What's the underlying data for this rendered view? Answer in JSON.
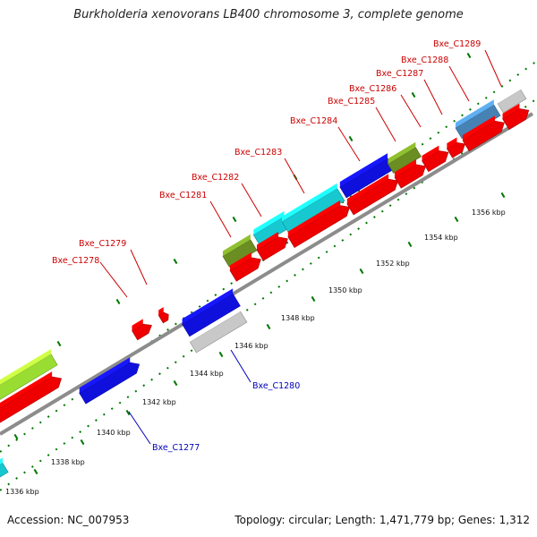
{
  "title": "Burkholderia xenovorans LB400 chromosome 3, complete genome",
  "footer": {
    "accession": "Accession: NC_007953",
    "summary": "Topology: circular; Length: 1,471,779 bp; Genes: 1,312"
  },
  "scale_labels": [
    "1336 kbp",
    "1338 kbp",
    "1340 kbp",
    "1342 kbp",
    "1344 kbp",
    "1346 kbp",
    "1348 kbp",
    "1350 kbp",
    "1352 kbp",
    "1354 kbp",
    "1356 kbp"
  ],
  "colors": {
    "red": "#ee0000",
    "blue": "#1010dd",
    "gray": "#c8c8c8",
    "cyan": "#18c8d0",
    "olive": "#6b8e23",
    "lime": "#99dd33",
    "steel": "#4682b4",
    "label_top": "#cc0000",
    "label_bottom": "#0000bb",
    "tick": "#007700",
    "backbone": "#808080"
  },
  "genes_top": [
    "Bxe_C1278",
    "Bxe_C1279",
    "Bxe_C1281",
    "Bxe_C1282",
    "Bxe_C1283",
    "Bxe_C1284",
    "Bxe_C1285",
    "Bxe_C1286",
    "Bxe_C1287",
    "Bxe_C1288",
    "Bxe_C1289"
  ],
  "genes_bottom": [
    "Bxe_C1277",
    "Bxe_C1280"
  ]
}
